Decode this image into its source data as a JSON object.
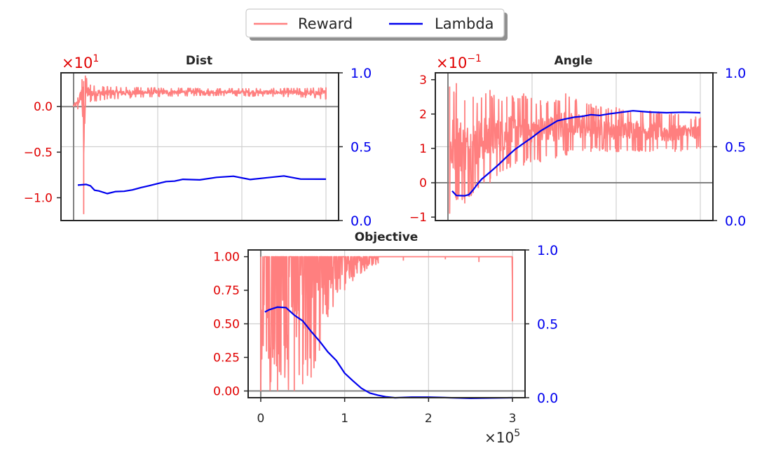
{
  "legend": {
    "entries": [
      {
        "label": "Reward",
        "color": "#ff7f7f"
      },
      {
        "label": "Lambda",
        "color": "#0000ee"
      }
    ]
  },
  "colors": {
    "reward": "#ff7f7f",
    "lambda": "#0000ee",
    "left_axis": "#e00000",
    "right_axis": "#0000ee",
    "zero_line": "#808080"
  },
  "chart_data": [
    {
      "type": "line",
      "title": "Dist",
      "left_multiplier_base": "×10",
      "left_multiplier_exp": "1",
      "ylim_left": [
        -1.25,
        0.37
      ],
      "ylim_right": [
        0.0,
        1.0
      ],
      "xlim": [
        -15000,
        315000
      ],
      "left_ticks": [
        "0.0",
        "−0.5",
        "−1.0"
      ],
      "left_tick_values": [
        0.0,
        -0.5,
        -1.0
      ],
      "right_ticks": [
        "0.0",
        "0.5",
        "1.0"
      ],
      "right_tick_values": [
        0.0,
        0.5,
        1.0
      ],
      "x_grid": [
        0,
        100000,
        200000,
        300000
      ],
      "series": [
        {
          "name": "Reward",
          "axis": "left",
          "band": [
            [
              0,
              0.0,
              0.02
            ],
            [
              5000,
              -0.03,
              0.1
            ],
            [
              10000,
              0.02,
              0.3
            ],
            [
              12000,
              -1.18,
              0.28
            ],
            [
              14000,
              0.0,
              0.34
            ],
            [
              20000,
              0.05,
              0.24
            ],
            [
              40000,
              0.08,
              0.22
            ],
            [
              80000,
              0.1,
              0.21
            ],
            [
              150000,
              0.12,
              0.2
            ],
            [
              250000,
              0.11,
              0.2
            ],
            [
              300000,
              0.08,
              0.21
            ]
          ]
        },
        {
          "name": "Lambda",
          "axis": "right",
          "x": [
            5000,
            15000,
            20000,
            25000,
            30000,
            40000,
            50000,
            60000,
            70000,
            80000,
            90000,
            100000,
            110000,
            120000,
            130000,
            140000,
            150000,
            170000,
            190000,
            210000,
            230000,
            250000,
            270000,
            300000
          ],
          "values": [
            0.24,
            0.245,
            0.235,
            0.21,
            0.2,
            0.185,
            0.2,
            0.195,
            0.21,
            0.22,
            0.24,
            0.25,
            0.265,
            0.27,
            0.28,
            0.275,
            0.28,
            0.295,
            0.3,
            0.28,
            0.29,
            0.3,
            0.28,
            0.28
          ]
        }
      ]
    },
    {
      "type": "line",
      "title": "Angle",
      "left_multiplier_base": "×10",
      "left_multiplier_exp": "−1",
      "ylim_left": [
        -1.1,
        3.2
      ],
      "ylim_right": [
        0.0,
        1.0
      ],
      "xlim": [
        -15000,
        315000
      ],
      "left_ticks": [
        "3",
        "2",
        "1",
        "0",
        "−1"
      ],
      "left_tick_values": [
        3,
        2,
        1,
        0,
        -1
      ],
      "right_ticks": [
        "0.0",
        "0.5",
        "1.0"
      ],
      "right_tick_values": [
        0.0,
        0.5,
        1.0
      ],
      "x_grid": [
        0,
        100000,
        200000,
        300000
      ],
      "series": [
        {
          "name": "Reward",
          "axis": "left",
          "band": [
            [
              2000,
              -0.9,
              2.8
            ],
            [
              10000,
              -0.5,
              2.9
            ],
            [
              20000,
              -0.6,
              2.4
            ],
            [
              30000,
              -0.3,
              2.5
            ],
            [
              50000,
              0.0,
              2.7
            ],
            [
              70000,
              0.4,
              2.5
            ],
            [
              90000,
              0.5,
              2.6
            ],
            [
              110000,
              0.6,
              2.4
            ],
            [
              140000,
              0.8,
              2.6
            ],
            [
              170000,
              0.9,
              2.3
            ],
            [
              200000,
              0.9,
              2.2
            ],
            [
              240000,
              0.9,
              2.1
            ],
            [
              270000,
              0.9,
              2.0
            ],
            [
              300000,
              1.0,
              1.9
            ]
          ]
        },
        {
          "name": "Lambda",
          "axis": "right",
          "x": [
            5000,
            10000,
            20000,
            25000,
            30000,
            35000,
            40000,
            50000,
            60000,
            70000,
            80000,
            90000,
            100000,
            110000,
            120000,
            130000,
            140000,
            150000,
            160000,
            170000,
            180000,
            190000,
            200000,
            220000,
            240000,
            260000,
            280000,
            300000
          ],
          "values": [
            0.2,
            0.17,
            0.17,
            0.18,
            0.21,
            0.25,
            0.28,
            0.33,
            0.38,
            0.43,
            0.48,
            0.52,
            0.56,
            0.61,
            0.64,
            0.67,
            0.69,
            0.7,
            0.71,
            0.715,
            0.71,
            0.72,
            0.73,
            0.74,
            0.73,
            0.725,
            0.73,
            0.73
          ]
        }
      ]
    },
    {
      "type": "line",
      "title": "Objective",
      "xlim": [
        -15000,
        315000
      ],
      "ylim_left": [
        -0.05,
        1.05
      ],
      "ylim_right": [
        0.0,
        1.0
      ],
      "left_ticks": [
        "1.00",
        "0.75",
        "0.50",
        "0.25",
        "0.00"
      ],
      "left_tick_values": [
        1.0,
        0.75,
        0.5,
        0.25,
        0.0
      ],
      "right_ticks": [
        "1.0",
        "0.5",
        "0.0"
      ],
      "right_tick_values": [
        1.0,
        0.5,
        0.0
      ],
      "x_ticks": [
        "0",
        "1",
        "2",
        "3"
      ],
      "x_tick_values": [
        0,
        100000,
        200000,
        300000
      ],
      "x_multiplier_base": "×10",
      "x_multiplier_exp": "5",
      "series": [
        {
          "name": "Reward",
          "axis": "left",
          "band": [
            [
              0,
              0.0,
              1.0
            ],
            [
              20000,
              0.0,
              1.0
            ],
            [
              40000,
              0.0,
              1.0
            ],
            [
              50000,
              0.05,
              1.0
            ],
            [
              60000,
              0.1,
              1.0
            ],
            [
              70000,
              0.3,
              1.0
            ],
            [
              80000,
              0.55,
              1.0
            ],
            [
              100000,
              0.75,
              1.0
            ],
            [
              120000,
              0.88,
              1.0
            ],
            [
              140000,
              0.95,
              1.0
            ],
            [
              170000,
              0.97,
              1.0
            ],
            [
              220000,
              0.98,
              1.0
            ],
            [
              260000,
              0.96,
              1.0
            ],
            [
              299000,
              1.0,
              1.0
            ],
            [
              300000,
              0.52,
              1.0
            ]
          ]
        },
        {
          "name": "Lambda",
          "axis": "right",
          "x": [
            5000,
            10000,
            20000,
            30000,
            40000,
            50000,
            60000,
            70000,
            80000,
            90000,
            100000,
            110000,
            120000,
            130000,
            140000,
            150000,
            160000,
            180000,
            200000,
            250000,
            300000
          ],
          "values": [
            0.58,
            0.6,
            0.61,
            0.61,
            0.56,
            0.52,
            0.45,
            0.38,
            0.31,
            0.25,
            0.17,
            0.11,
            0.06,
            0.03,
            0.015,
            0.005,
            0.002,
            0.0,
            0.0,
            0.0,
            0.0
          ]
        }
      ]
    }
  ]
}
